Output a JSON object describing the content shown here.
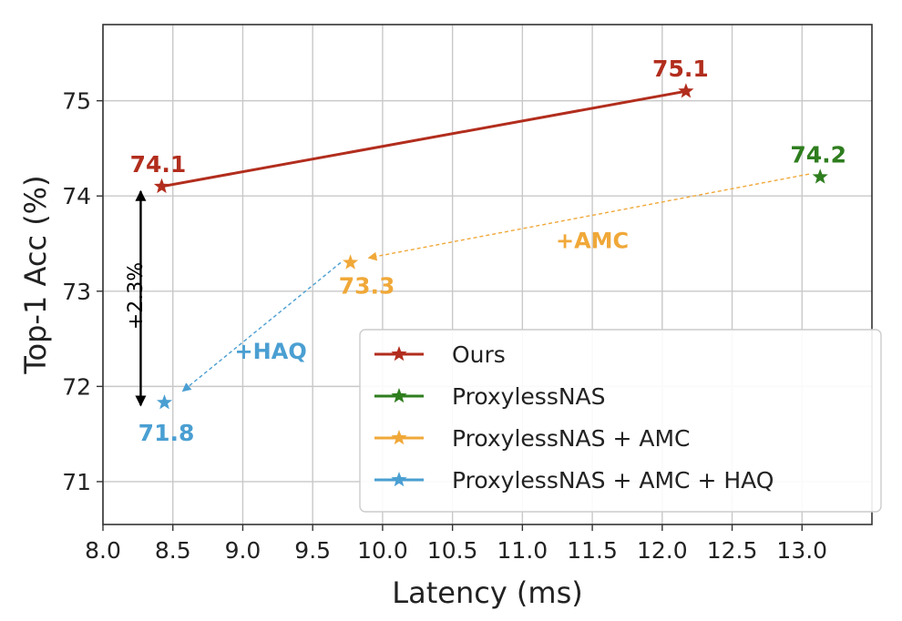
{
  "chart_data": {
    "type": "line",
    "xlabel": "Latency (ms)",
    "ylabel": "Top-1 Acc (%)",
    "xlim": [
      8.0,
      13.5
    ],
    "ylim": [
      70.55,
      75.8
    ],
    "x_ticks": [
      "8.0",
      "8.5",
      "9.0",
      "9.5",
      "10.0",
      "10.5",
      "11.0",
      "11.5",
      "12.0",
      "12.5",
      "13.0"
    ],
    "y_ticks": [
      "71",
      "72",
      "73",
      "74",
      "75"
    ],
    "grid": true,
    "legend_position": "lower-right",
    "series": [
      {
        "name": "Ours",
        "color": "#b22d1d",
        "line": "solid",
        "marker": "star",
        "points": [
          {
            "x": 8.42,
            "y": 74.1,
            "label": "74.1"
          },
          {
            "x": 12.17,
            "y": 75.1,
            "label": "75.1"
          }
        ]
      },
      {
        "name": "ProxylessNAS",
        "color": "#2e7d1e",
        "line": "none",
        "marker": "star",
        "points": [
          {
            "x": 13.13,
            "y": 74.2,
            "label": "74.2"
          }
        ]
      },
      {
        "name": "ProxylessNAS + AMC",
        "color": "#f0a838",
        "line": "none",
        "marker": "star",
        "points": [
          {
            "x": 9.77,
            "y": 73.3,
            "label": "73.3"
          }
        ]
      },
      {
        "name": "ProxylessNAS + AMC + HAQ",
        "color": "#4a9fd2",
        "line": "none",
        "marker": "star",
        "points": [
          {
            "x": 8.44,
            "y": 71.83,
            "label": "71.8"
          }
        ]
      }
    ],
    "annotations": [
      {
        "text": "+AMC",
        "color": "#f0a838",
        "x": 11.5,
        "y": 73.45
      },
      {
        "text": "+HAQ",
        "color": "#4a9fd2",
        "x": 9.2,
        "y": 72.29
      },
      {
        "text": "+2.3%",
        "color": "#000000",
        "x": 8.28,
        "y": 72.95
      }
    ],
    "arrows": [
      {
        "from": [
          13.05,
          74.23
        ],
        "to": [
          9.9,
          73.35
        ],
        "color": "#f0a838",
        "style": "dashed"
      },
      {
        "from": [
          9.7,
          73.3
        ],
        "to": [
          8.57,
          71.95
        ],
        "color": "#4a9fd2",
        "style": "dashed"
      },
      {
        "from": [
          8.27,
          71.8
        ],
        "to": [
          8.27,
          74.05
        ],
        "color": "#000000",
        "style": "solid",
        "double": true
      }
    ]
  }
}
